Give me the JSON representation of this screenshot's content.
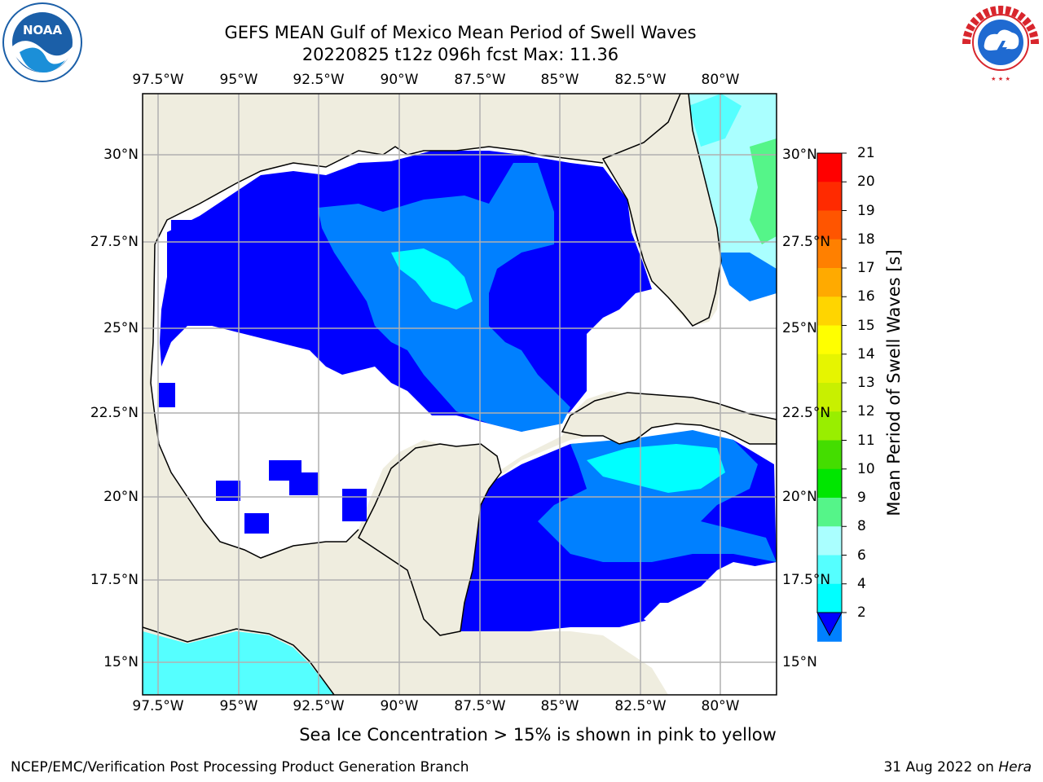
{
  "title_line1": "GEFS MEAN Gulf of Mexico Mean Period of Swell Waves",
  "title_line2": "20220825 t12z 096h fcst   Max: 11.36",
  "lon_labels": [
    "97.5°W",
    "95°W",
    "92.5°W",
    "90°W",
    "87.5°W",
    "85°W",
    "82.5°W",
    "80°W"
  ],
  "lat_labels": [
    "30°N",
    "27.5°N",
    "25°N",
    "22.5°N",
    "20°N",
    "17.5°N",
    "15°N"
  ],
  "colorbar": {
    "label": "Mean Period of Swell Waves [s]",
    "ticks": [
      "21",
      "20",
      "19",
      "18",
      "17",
      "16",
      "15",
      "14",
      "13",
      "12",
      "11",
      "10",
      "9",
      "8",
      "6",
      "4",
      "2"
    ],
    "colors": [
      "#ff0000",
      "#ff2a00",
      "#ff5500",
      "#ff8000",
      "#ffaa00",
      "#ffd500",
      "#ffff00",
      "#e6f500",
      "#c8f000",
      "#99ee00",
      "#44dd00",
      "#00e600",
      "#55f589",
      "#aaffff",
      "#55ffff",
      "#00ffff",
      "#0080ff"
    ]
  },
  "footnote": "Sea Ice Concentration > 15% is shown in pink to yellow",
  "credit_left": "NCEP/EMC/Verification Post Processing Product Generation Branch",
  "credit_right_prefix": "31 Aug 2022 on ",
  "credit_right_machine": "Hera",
  "logos": {
    "left": "NOAA",
    "right": "NATIONAL WEATHER SERVICE"
  },
  "map_colors": {
    "land": "#efeddf",
    "deep_blue": "#0000ff",
    "mid_blue": "#0080ff",
    "cyan": "#00ffff",
    "light_cyan": "#55ffff",
    "pale": "#aaffff",
    "green": "#55f589"
  }
}
